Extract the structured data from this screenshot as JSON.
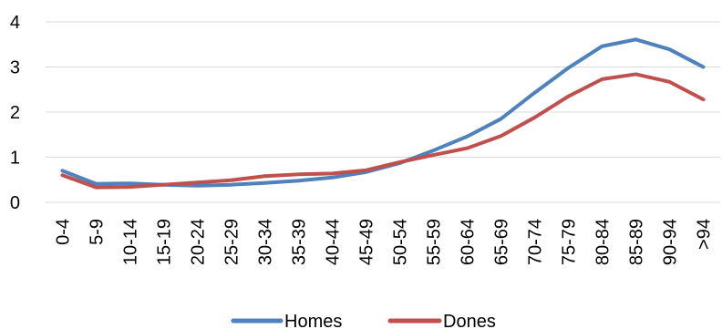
{
  "chart_data": {
    "type": "line",
    "categories": [
      "0-4",
      "5-9",
      "10-14",
      "15-19",
      "20-24",
      "25-29",
      "30-34",
      "35-39",
      "40-44",
      "45-49",
      "50-54",
      "55-59",
      "60-64",
      "65-69",
      "70-74",
      "75-79",
      "80-84",
      "85-89",
      "90-94",
      ">94"
    ],
    "series": [
      {
        "name": "Homes",
        "color": "#4f81bd",
        "values": [
          0.7,
          0.41,
          0.42,
          0.39,
          0.37,
          0.39,
          0.43,
          0.48,
          0.55,
          0.67,
          0.87,
          1.15,
          1.46,
          1.85,
          2.43,
          2.98,
          3.46,
          3.61,
          3.39,
          3.0
        ]
      },
      {
        "name": "Dones",
        "color": "#c0504d",
        "values": [
          0.6,
          0.33,
          0.34,
          0.39,
          0.44,
          0.49,
          0.58,
          0.62,
          0.64,
          0.71,
          0.89,
          1.05,
          1.2,
          1.47,
          1.88,
          2.35,
          2.73,
          2.84,
          2.67,
          2.28
        ]
      }
    ],
    "yticks": [
      0,
      1,
      2,
      3,
      4
    ],
    "ylim": [
      0,
      4
    ],
    "grid": true,
    "legend": "bottom"
  }
}
